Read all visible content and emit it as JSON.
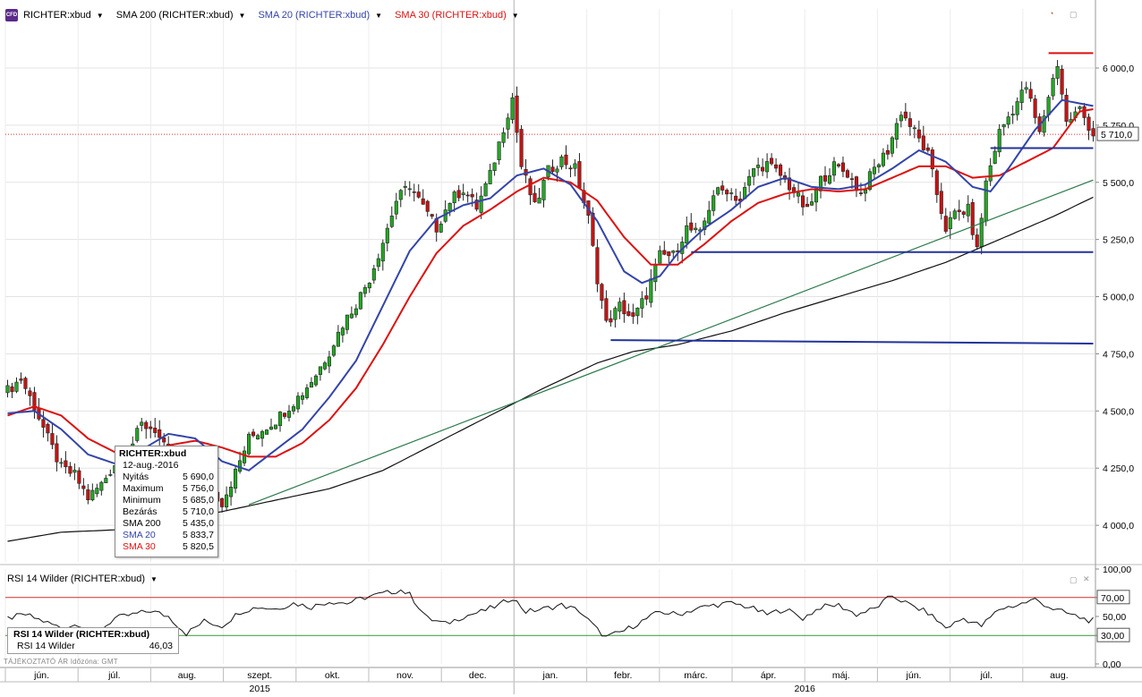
{
  "legend": {
    "main_label": "RICHTER:xbud",
    "sma200_label": "SMA 200 (RICHTER:xbud)",
    "sma20_label": "SMA 20 (RICHTER:xbud)",
    "sma30_label": "SMA 30 (RICHTER:xbud)",
    "icon_text": "CFD"
  },
  "colors": {
    "up": "#22aa22",
    "down": "#cc1111",
    "sma200": "#111111",
    "sma20": "#3344aa",
    "sma30": "#dd1111",
    "trendline": "#2a7a4a",
    "hline": "#22339a",
    "resistance": "#dd1111",
    "rsi": "#111111",
    "rsi_hi": "#cc3333",
    "rsi_lo": "#339933"
  },
  "tooltip": {
    "title": "RICHTER:xbud",
    "date": "12-aug.-2016",
    "rows": [
      {
        "label": "Nyitás",
        "value": "5 690,0"
      },
      {
        "label": "Maximum",
        "value": "5 756,0"
      },
      {
        "label": "Minimum",
        "value": "5 685,0"
      },
      {
        "label": "Bezárás",
        "value": "5 710,0"
      },
      {
        "label": "SMA 200",
        "value": "5 435,0"
      },
      {
        "label": "SMA 20",
        "value": "5 833,7"
      },
      {
        "label": "SMA 30",
        "value": "5 820,5"
      }
    ]
  },
  "rsi_panel": {
    "label": "RSI 14 Wilder (RICHTER:xbud)",
    "box_title": "RSI 14 Wilder (RICHTER:xbud)",
    "box_row_label": "RSI 14 Wilder",
    "box_row_value": "46,03"
  },
  "footer_note": "TÁJÉKOZTATÓ ÁR   Időzóna: GMT",
  "chart_data": {
    "type": "candlestick",
    "y_ticks": [
      "4 000,0",
      "4 250,0",
      "4 500,0",
      "4 750,0",
      "5 000,0",
      "5 250,0",
      "5 500,0",
      "5 750,0",
      "6 000,0"
    ],
    "y_tick_values": [
      4000,
      4250,
      4500,
      4750,
      5000,
      5250,
      5500,
      5750,
      6000
    ],
    "ylim": [
      3840,
      6180
    ],
    "last_price_label": "5 710,0",
    "last_price": 5710,
    "x_month_labels": [
      "jún.",
      "júl.",
      "aug.",
      "szept.",
      "okt.",
      "nov.",
      "dec.",
      "jan.",
      "febr.",
      "márc.",
      "ápr.",
      "máj.",
      "jún.",
      "júl.",
      "aug."
    ],
    "year_labels": [
      "2015",
      "2016"
    ],
    "price_anchors": [
      [
        0,
        4590
      ],
      [
        3,
        4640
      ],
      [
        6,
        4520
      ],
      [
        9,
        4380
      ],
      [
        12,
        4250
      ],
      [
        15,
        4220
      ],
      [
        18,
        4120
      ],
      [
        21,
        4180
      ],
      [
        24,
        4270
      ],
      [
        27,
        4320
      ],
      [
        30,
        4440
      ],
      [
        33,
        4420
      ],
      [
        36,
        4300
      ],
      [
        39,
        4250
      ],
      [
        42,
        4210
      ],
      [
        45,
        4170
      ],
      [
        48,
        4100
      ],
      [
        51,
        4230
      ],
      [
        54,
        4380
      ],
      [
        57,
        4420
      ],
      [
        60,
        4460
      ],
      [
        63,
        4520
      ],
      [
        66,
        4580
      ],
      [
        69,
        4660
      ],
      [
        72,
        4760
      ],
      [
        75,
        4880
      ],
      [
        78,
        4970
      ],
      [
        81,
        5080
      ],
      [
        84,
        5240
      ],
      [
        87,
        5420
      ],
      [
        90,
        5490
      ],
      [
        93,
        5390
      ],
      [
        96,
        5300
      ],
      [
        99,
        5420
      ],
      [
        102,
        5470
      ],
      [
        105,
        5390
      ],
      [
        108,
        5530
      ],
      [
        111,
        5740
      ],
      [
        113,
        5870
      ],
      [
        115,
        5570
      ],
      [
        118,
        5390
      ],
      [
        121,
        5550
      ],
      [
        124,
        5600
      ],
      [
        127,
        5560
      ],
      [
        130,
        5340
      ],
      [
        132,
        5080
      ],
      [
        134,
        4880
      ],
      [
        137,
        4960
      ],
      [
        140,
        4900
      ],
      [
        143,
        5010
      ],
      [
        146,
        5180
      ],
      [
        149,
        5180
      ],
      [
        152,
        5300
      ],
      [
        155,
        5270
      ],
      [
        158,
        5450
      ],
      [
        161,
        5470
      ],
      [
        164,
        5420
      ],
      [
        167,
        5560
      ],
      [
        170,
        5580
      ],
      [
        173,
        5530
      ],
      [
        176,
        5460
      ],
      [
        179,
        5370
      ],
      [
        182,
        5510
      ],
      [
        185,
        5570
      ],
      [
        188,
        5540
      ],
      [
        191,
        5450
      ],
      [
        194,
        5560
      ],
      [
        197,
        5640
      ],
      [
        200,
        5810
      ],
      [
        203,
        5720
      ],
      [
        206,
        5620
      ],
      [
        208,
        5450
      ],
      [
        210,
        5300
      ],
      [
        212,
        5360
      ],
      [
        215,
        5380
      ],
      [
        217,
        5200
      ],
      [
        219,
        5500
      ],
      [
        222,
        5720
      ],
      [
        225,
        5820
      ],
      [
        228,
        5920
      ],
      [
        231,
        5710
      ],
      [
        233,
        5880
      ],
      [
        235,
        6020
      ],
      [
        237,
        5760
      ],
      [
        240,
        5820
      ],
      [
        243,
        5710
      ]
    ],
    "sma20_anchors": [
      [
        0,
        4490
      ],
      [
        6,
        4500
      ],
      [
        12,
        4420
      ],
      [
        18,
        4310
      ],
      [
        24,
        4270
      ],
      [
        30,
        4330
      ],
      [
        36,
        4400
      ],
      [
        42,
        4380
      ],
      [
        48,
        4280
      ],
      [
        54,
        4240
      ],
      [
        60,
        4330
      ],
      [
        66,
        4420
      ],
      [
        72,
        4560
      ],
      [
        78,
        4720
      ],
      [
        84,
        4960
      ],
      [
        90,
        5200
      ],
      [
        96,
        5340
      ],
      [
        102,
        5400
      ],
      [
        108,
        5430
      ],
      [
        114,
        5530
      ],
      [
        120,
        5560
      ],
      [
        126,
        5490
      ],
      [
        132,
        5330
      ],
      [
        138,
        5110
      ],
      [
        142,
        5060
      ],
      [
        146,
        5090
      ],
      [
        150,
        5190
      ],
      [
        156,
        5300
      ],
      [
        162,
        5380
      ],
      [
        168,
        5480
      ],
      [
        174,
        5520
      ],
      [
        180,
        5480
      ],
      [
        186,
        5470
      ],
      [
        192,
        5490
      ],
      [
        198,
        5560
      ],
      [
        204,
        5640
      ],
      [
        210,
        5590
      ],
      [
        216,
        5480
      ],
      [
        220,
        5460
      ],
      [
        224,
        5560
      ],
      [
        230,
        5730
      ],
      [
        236,
        5860
      ],
      [
        243,
        5834
      ]
    ],
    "sma30_anchors": [
      [
        0,
        4480
      ],
      [
        6,
        4520
      ],
      [
        12,
        4480
      ],
      [
        18,
        4380
      ],
      [
        24,
        4320
      ],
      [
        30,
        4300
      ],
      [
        36,
        4350
      ],
      [
        42,
        4370
      ],
      [
        48,
        4340
      ],
      [
        54,
        4300
      ],
      [
        60,
        4300
      ],
      [
        66,
        4360
      ],
      [
        72,
        4460
      ],
      [
        78,
        4600
      ],
      [
        84,
        4790
      ],
      [
        90,
        5000
      ],
      [
        96,
        5190
      ],
      [
        102,
        5310
      ],
      [
        108,
        5380
      ],
      [
        114,
        5460
      ],
      [
        120,
        5520
      ],
      [
        126,
        5500
      ],
      [
        132,
        5420
      ],
      [
        138,
        5260
      ],
      [
        144,
        5140
      ],
      [
        150,
        5140
      ],
      [
        156,
        5230
      ],
      [
        162,
        5330
      ],
      [
        168,
        5410
      ],
      [
        174,
        5450
      ],
      [
        180,
        5470
      ],
      [
        186,
        5460
      ],
      [
        192,
        5470
      ],
      [
        198,
        5520
      ],
      [
        204,
        5570
      ],
      [
        210,
        5570
      ],
      [
        216,
        5520
      ],
      [
        222,
        5530
      ],
      [
        228,
        5590
      ],
      [
        234,
        5650
      ],
      [
        240,
        5810
      ],
      [
        243,
        5820
      ]
    ],
    "sma200_anchors": [
      [
        0,
        3930
      ],
      [
        12,
        3970
      ],
      [
        24,
        3980
      ],
      [
        36,
        4020
      ],
      [
        48,
        4060
      ],
      [
        60,
        4110
      ],
      [
        72,
        4160
      ],
      [
        84,
        4240
      ],
      [
        96,
        4360
      ],
      [
        108,
        4480
      ],
      [
        120,
        4600
      ],
      [
        132,
        4710
      ],
      [
        140,
        4760
      ],
      [
        150,
        4790
      ],
      [
        162,
        4850
      ],
      [
        174,
        4930
      ],
      [
        186,
        5000
      ],
      [
        198,
        5070
      ],
      [
        210,
        5150
      ],
      [
        222,
        5250
      ],
      [
        234,
        5350
      ],
      [
        243,
        5435
      ]
    ],
    "trendline": [
      [
        54,
        4090
      ],
      [
        243,
        5510
      ]
    ],
    "support_long": [
      [
        135,
        4810
      ],
      [
        243,
        4795
      ]
    ],
    "support_mid": [
      [
        153,
        5195
      ],
      [
        243,
        5195
      ]
    ],
    "support_top": [
      [
        220,
        5650
      ],
      [
        243,
        5650
      ]
    ],
    "resistance_top": [
      [
        233,
        6065
      ],
      [
        243,
        6065
      ]
    ],
    "rsi_y_ticks": [
      "0,00",
      "30,00",
      "50,00",
      "70,00",
      "100,00"
    ],
    "rsi_y_values": [
      0,
      30,
      50,
      70,
      100
    ],
    "rsi_level_labels": [
      "70,00",
      "30,00"
    ],
    "rsi_anchors": [
      [
        0,
        48
      ],
      [
        4,
        52
      ],
      [
        8,
        45
      ],
      [
        12,
        38
      ],
      [
        16,
        42
      ],
      [
        20,
        33
      ],
      [
        24,
        48
      ],
      [
        28,
        52
      ],
      [
        32,
        56
      ],
      [
        36,
        50
      ],
      [
        40,
        32
      ],
      [
        44,
        45
      ],
      [
        48,
        40
      ],
      [
        52,
        55
      ],
      [
        56,
        60
      ],
      [
        60,
        58
      ],
      [
        64,
        64
      ],
      [
        68,
        60
      ],
      [
        72,
        66
      ],
      [
        76,
        64
      ],
      [
        80,
        70
      ],
      [
        84,
        74
      ],
      [
        88,
        78
      ],
      [
        90,
        73
      ],
      [
        94,
        48
      ],
      [
        98,
        42
      ],
      [
        102,
        50
      ],
      [
        106,
        55
      ],
      [
        110,
        62
      ],
      [
        113,
        70
      ],
      [
        116,
        55
      ],
      [
        120,
        58
      ],
      [
        124,
        62
      ],
      [
        128,
        56
      ],
      [
        132,
        36
      ],
      [
        134,
        28
      ],
      [
        138,
        35
      ],
      [
        142,
        45
      ],
      [
        146,
        55
      ],
      [
        150,
        52
      ],
      [
        154,
        58
      ],
      [
        158,
        62
      ],
      [
        162,
        64
      ],
      [
        166,
        60
      ],
      [
        170,
        52
      ],
      [
        174,
        58
      ],
      [
        178,
        48
      ],
      [
        182,
        60
      ],
      [
        186,
        62
      ],
      [
        190,
        52
      ],
      [
        194,
        58
      ],
      [
        198,
        72
      ],
      [
        202,
        62
      ],
      [
        206,
        54
      ],
      [
        210,
        38
      ],
      [
        214,
        48
      ],
      [
        218,
        40
      ],
      [
        222,
        58
      ],
      [
        226,
        62
      ],
      [
        230,
        68
      ],
      [
        234,
        58
      ],
      [
        238,
        52
      ],
      [
        242,
        46
      ],
      [
        243,
        46
      ]
    ]
  }
}
